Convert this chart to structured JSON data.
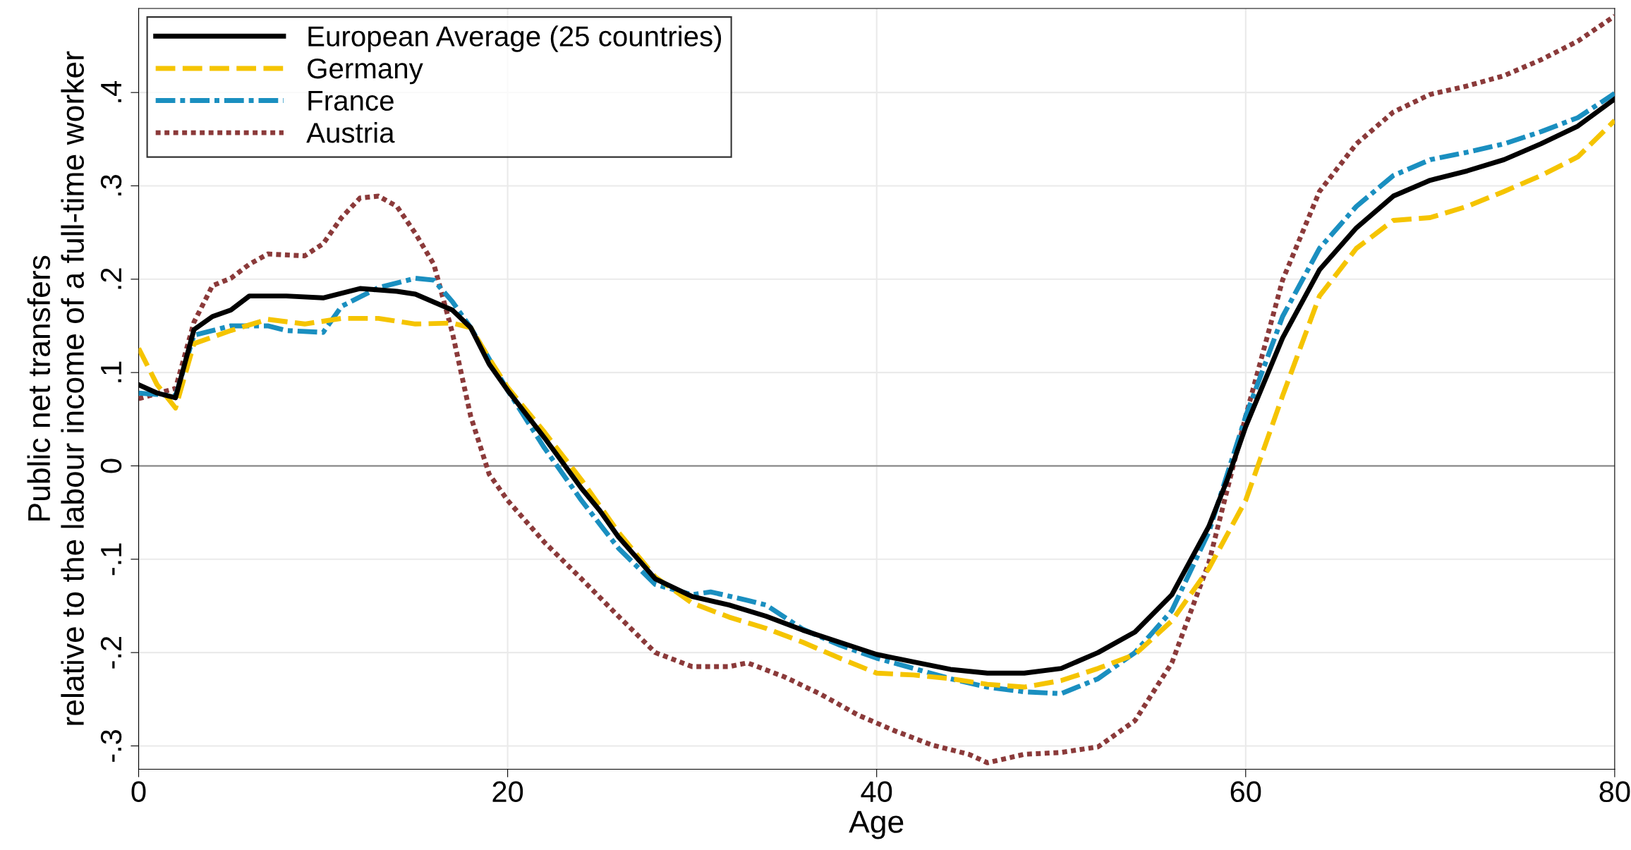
{
  "chart_data": {
    "type": "line",
    "xlabel": "Age",
    "ylabel": "Public net transfers\nrelative to the labour income of a full-time worker",
    "xlim": [
      0,
      80
    ],
    "xticks": [
      0,
      20,
      40,
      60,
      80
    ],
    "ylim": [
      -0.325,
      0.49
    ],
    "yticks": [
      {
        "value": -0.3,
        "label": "-.3"
      },
      {
        "value": -0.2,
        "label": "-.2"
      },
      {
        "value": -0.1,
        "label": "-.1"
      },
      0,
      {
        "value": 0.1,
        "label": ".1"
      },
      {
        "value": 0.2,
        "label": ".2"
      },
      {
        "value": 0.3,
        "label": ".3"
      },
      {
        "value": 0.4,
        "label": ".4"
      }
    ],
    "grid": true,
    "legend": "top left",
    "ref_lines": [
      {
        "axis": "y",
        "value": 0,
        "color": "#808080"
      }
    ],
    "series": [
      {
        "name": "European Average (25 countries)",
        "color": "#000000",
        "line_style": "solid",
        "x": [
          0,
          1,
          2,
          3,
          4,
          5,
          6,
          8,
          10,
          12,
          14,
          15,
          17,
          18,
          19,
          20,
          22,
          24,
          25,
          26,
          28,
          30,
          32,
          34,
          36,
          38,
          40,
          42,
          44,
          46,
          48,
          50,
          52,
          54,
          56,
          58,
          59,
          60,
          62,
          64,
          66,
          68,
          70,
          72,
          74,
          76,
          78,
          80
        ],
        "values": [
          0.087,
          0.078,
          0.073,
          0.146,
          0.16,
          0.167,
          0.182,
          0.182,
          0.18,
          0.19,
          0.187,
          0.184,
          0.167,
          0.148,
          0.109,
          0.081,
          0.03,
          -0.024,
          -0.048,
          -0.076,
          -0.121,
          -0.14,
          -0.149,
          -0.161,
          -0.176,
          -0.189,
          -0.202,
          -0.21,
          -0.218,
          -0.222,
          -0.222,
          -0.217,
          -0.2,
          -0.178,
          -0.138,
          -0.065,
          -0.015,
          0.042,
          0.137,
          0.21,
          0.255,
          0.289,
          0.306,
          0.316,
          0.328,
          0.345,
          0.364,
          0.393
        ]
      },
      {
        "name": "Germany",
        "color": "#f5c400",
        "line_style": "dashed",
        "x": [
          0,
          1,
          2,
          3,
          5,
          7,
          9,
          11,
          13,
          15,
          17,
          18,
          19,
          20,
          22,
          24,
          26,
          28,
          30,
          32,
          34,
          36,
          38,
          40,
          42,
          44,
          46,
          48,
          50,
          52,
          54,
          56,
          58,
          60,
          62,
          64,
          66,
          68,
          70,
          72,
          74,
          76,
          78,
          80
        ],
        "values": [
          0.126,
          0.087,
          0.062,
          0.131,
          0.145,
          0.157,
          0.152,
          0.158,
          0.158,
          0.152,
          0.153,
          0.148,
          0.115,
          0.084,
          0.036,
          -0.015,
          -0.071,
          -0.119,
          -0.147,
          -0.162,
          -0.174,
          -0.189,
          -0.206,
          -0.222,
          -0.224,
          -0.228,
          -0.234,
          -0.237,
          -0.23,
          -0.217,
          -0.202,
          -0.166,
          -0.11,
          -0.037,
          0.075,
          0.182,
          0.233,
          0.263,
          0.266,
          0.278,
          0.294,
          0.311,
          0.331,
          0.37
        ]
      },
      {
        "name": "France",
        "color": "#1a8fc0",
        "line_style": "dashed",
        "x": [
          0,
          2,
          3,
          5,
          7,
          8,
          10,
          11,
          13,
          15,
          16,
          17,
          18,
          20,
          22,
          24,
          26,
          28,
          30,
          31,
          33,
          34,
          36,
          38,
          40,
          42,
          44,
          46,
          48,
          50,
          52,
          54,
          56,
          58,
          60,
          62,
          64,
          66,
          68,
          70,
          72,
          74,
          76,
          78,
          80
        ],
        "values": [
          0.078,
          0.075,
          0.14,
          0.15,
          0.15,
          0.145,
          0.143,
          0.171,
          0.191,
          0.201,
          0.199,
          0.176,
          0.148,
          0.081,
          0.019,
          -0.037,
          -0.088,
          -0.127,
          -0.138,
          -0.135,
          -0.144,
          -0.149,
          -0.175,
          -0.192,
          -0.206,
          -0.217,
          -0.228,
          -0.237,
          -0.242,
          -0.244,
          -0.228,
          -0.2,
          -0.155,
          -0.071,
          0.053,
          0.16,
          0.233,
          0.278,
          0.311,
          0.328,
          0.336,
          0.345,
          0.358,
          0.373,
          0.399
        ]
      },
      {
        "name": "Austria",
        "color": "#8b3a3a",
        "line_style": "dotted",
        "x": [
          0,
          2,
          3,
          4,
          5,
          6,
          7,
          9,
          10,
          11,
          12,
          13,
          14,
          15,
          16,
          17,
          18,
          19,
          20,
          22,
          24,
          26,
          28,
          30,
          32,
          33,
          35,
          37,
          39,
          41,
          43,
          45,
          46,
          48,
          50,
          52,
          54,
          56,
          58,
          60,
          62,
          64,
          66,
          68,
          70,
          72,
          74,
          76,
          78,
          80
        ],
        "values": [
          0.072,
          0.083,
          0.154,
          0.193,
          0.201,
          0.216,
          0.227,
          0.225,
          0.238,
          0.266,
          0.287,
          0.289,
          0.278,
          0.249,
          0.216,
          0.143,
          0.053,
          -0.009,
          -0.037,
          -0.082,
          -0.121,
          -0.161,
          -0.2,
          -0.215,
          -0.215,
          -0.211,
          -0.226,
          -0.245,
          -0.267,
          -0.284,
          -0.299,
          -0.309,
          -0.318,
          -0.309,
          -0.307,
          -0.301,
          -0.273,
          -0.211,
          -0.104,
          0.053,
          0.199,
          0.294,
          0.345,
          0.379,
          0.398,
          0.407,
          0.418,
          0.435,
          0.455,
          0.482
        ]
      }
    ]
  }
}
